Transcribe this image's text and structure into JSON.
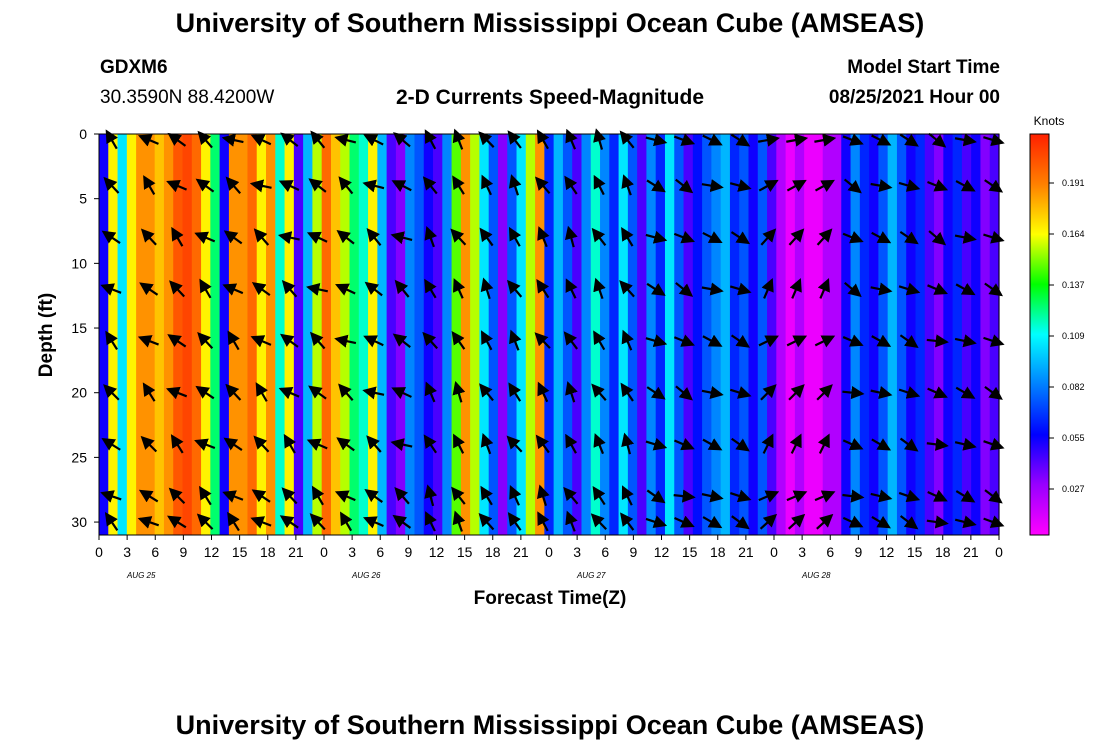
{
  "header": {
    "title": "University of Southern Mississippi Ocean Cube (AMSEAS)",
    "station": "GDXM6",
    "coords": "30.3590N  88.4200W",
    "subtitle": "2-D Currents Speed-Magnitude",
    "start_label": "Model Start Time",
    "start_value": "08/25/2021 Hour 00"
  },
  "footer": {
    "title": "University of Southern Mississippi Ocean Cube (AMSEAS)"
  },
  "chart_data": {
    "type": "heatmap",
    "xlabel": "Forecast Time(Z)",
    "ylabel": "Depth (ft)",
    "x_ticks": [
      "0",
      "3",
      "6",
      "9",
      "12",
      "15",
      "18",
      "21",
      "0",
      "3",
      "6",
      "9",
      "12",
      "15",
      "18",
      "21",
      "0",
      "3",
      "6",
      "9",
      "12",
      "15",
      "18",
      "21",
      "0",
      "3",
      "6",
      "9",
      "12",
      "15",
      "18",
      "21",
      "0"
    ],
    "day_labels": [
      "AUG 25",
      "AUG 26",
      "AUG 27",
      "AUG 28"
    ],
    "y_ticks": [
      0,
      5,
      10,
      15,
      20,
      25,
      30
    ],
    "ylim": [
      0,
      31
    ],
    "xlim_hours": [
      0,
      96
    ],
    "colorbar": {
      "label": "Knots",
      "ticks": [
        "0.191",
        "0.164",
        "0.137",
        "0.109",
        "0.082",
        "0.055",
        "0.027"
      ],
      "colors": [
        "#ff00ff",
        "#9900ff",
        "#0000ff",
        "#0080ff",
        "#00ffff",
        "#00ff00",
        "#ffff00",
        "#ff8000",
        "#ff2000"
      ]
    },
    "column_speed": [
      0.05,
      0.16,
      0.1,
      0.16,
      0.18,
      0.18,
      0.17,
      0.18,
      0.195,
      0.2,
      0.19,
      0.16,
      0.12,
      0.05,
      0.18,
      0.18,
      0.19,
      0.16,
      0.18,
      0.11,
      0.16,
      0.04,
      0.09,
      0.15,
      0.19,
      0.17,
      0.15,
      0.12,
      0.11,
      0.16,
      0.09,
      0.04,
      0.03,
      0.08,
      0.07,
      0.05,
      0.04,
      0.08,
      0.14,
      0.18,
      0.15,
      0.1,
      0.07,
      0.03,
      0.07,
      0.1,
      0.15,
      0.18,
      0.06,
      0.09,
      0.07,
      0.04,
      0.08,
      0.11,
      0.08,
      0.06,
      0.1,
      0.07,
      0.04,
      0.08,
      0.06,
      0.1,
      0.07,
      0.04,
      0.055,
      0.07,
      0.08,
      0.09,
      0.06,
      0.07,
      0.05,
      0.07,
      0.04,
      0.02,
      0.005,
      0.02,
      0.005,
      0.005,
      0.02,
      0.02,
      0.05,
      0.08,
      0.06,
      0.05,
      0.07,
      0.09,
      0.07,
      0.05,
      0.06,
      0.04,
      0.03,
      0.05,
      0.06,
      0.04,
      0.05,
      0.03,
      0.04
    ],
    "arrow_depths_ft": [
      0,
      4,
      8,
      12,
      16,
      20,
      24,
      28,
      30
    ],
    "arrow_hours": [
      2,
      6,
      9,
      12,
      15,
      18,
      21,
      24,
      27,
      30,
      33,
      36,
      39,
      42,
      45,
      48,
      51,
      54,
      57,
      60,
      63,
      66,
      69,
      72,
      75,
      78,
      81,
      84,
      87,
      90,
      93,
      96
    ]
  }
}
